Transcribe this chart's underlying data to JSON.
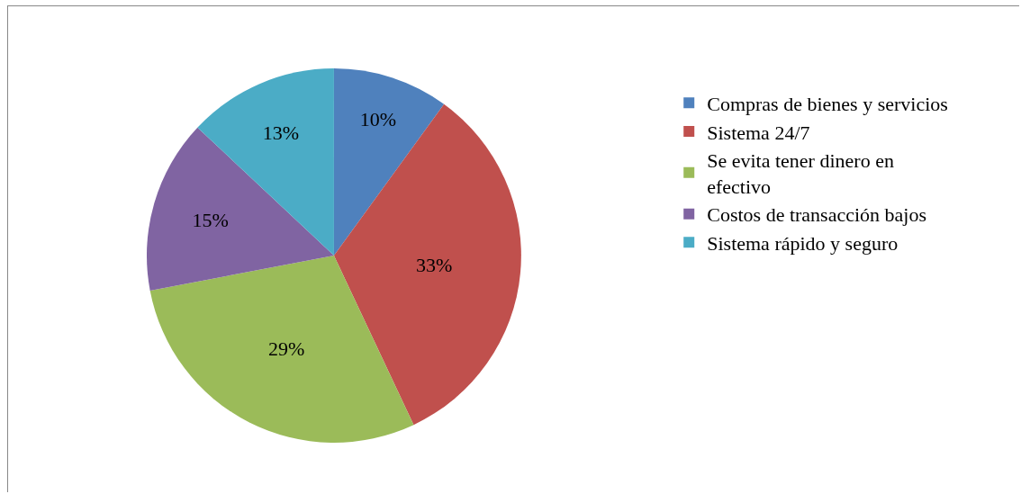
{
  "chart_data": {
    "type": "pie",
    "categories": [
      "Compras de bienes y servicios",
      "Sistema 24/7",
      "Se evita tener dinero en efectivo",
      "Costos de transacción bajos",
      "Sistema rápido y seguro"
    ],
    "values": [
      10,
      33,
      29,
      15,
      13
    ],
    "colors": [
      "#4f81bd",
      "#c0504d",
      "#9bbb59",
      "#8064a2",
      "#4bacc6"
    ],
    "value_labels": [
      "10%",
      "33%",
      "29%",
      "15%",
      "13%"
    ],
    "legend": "right"
  }
}
